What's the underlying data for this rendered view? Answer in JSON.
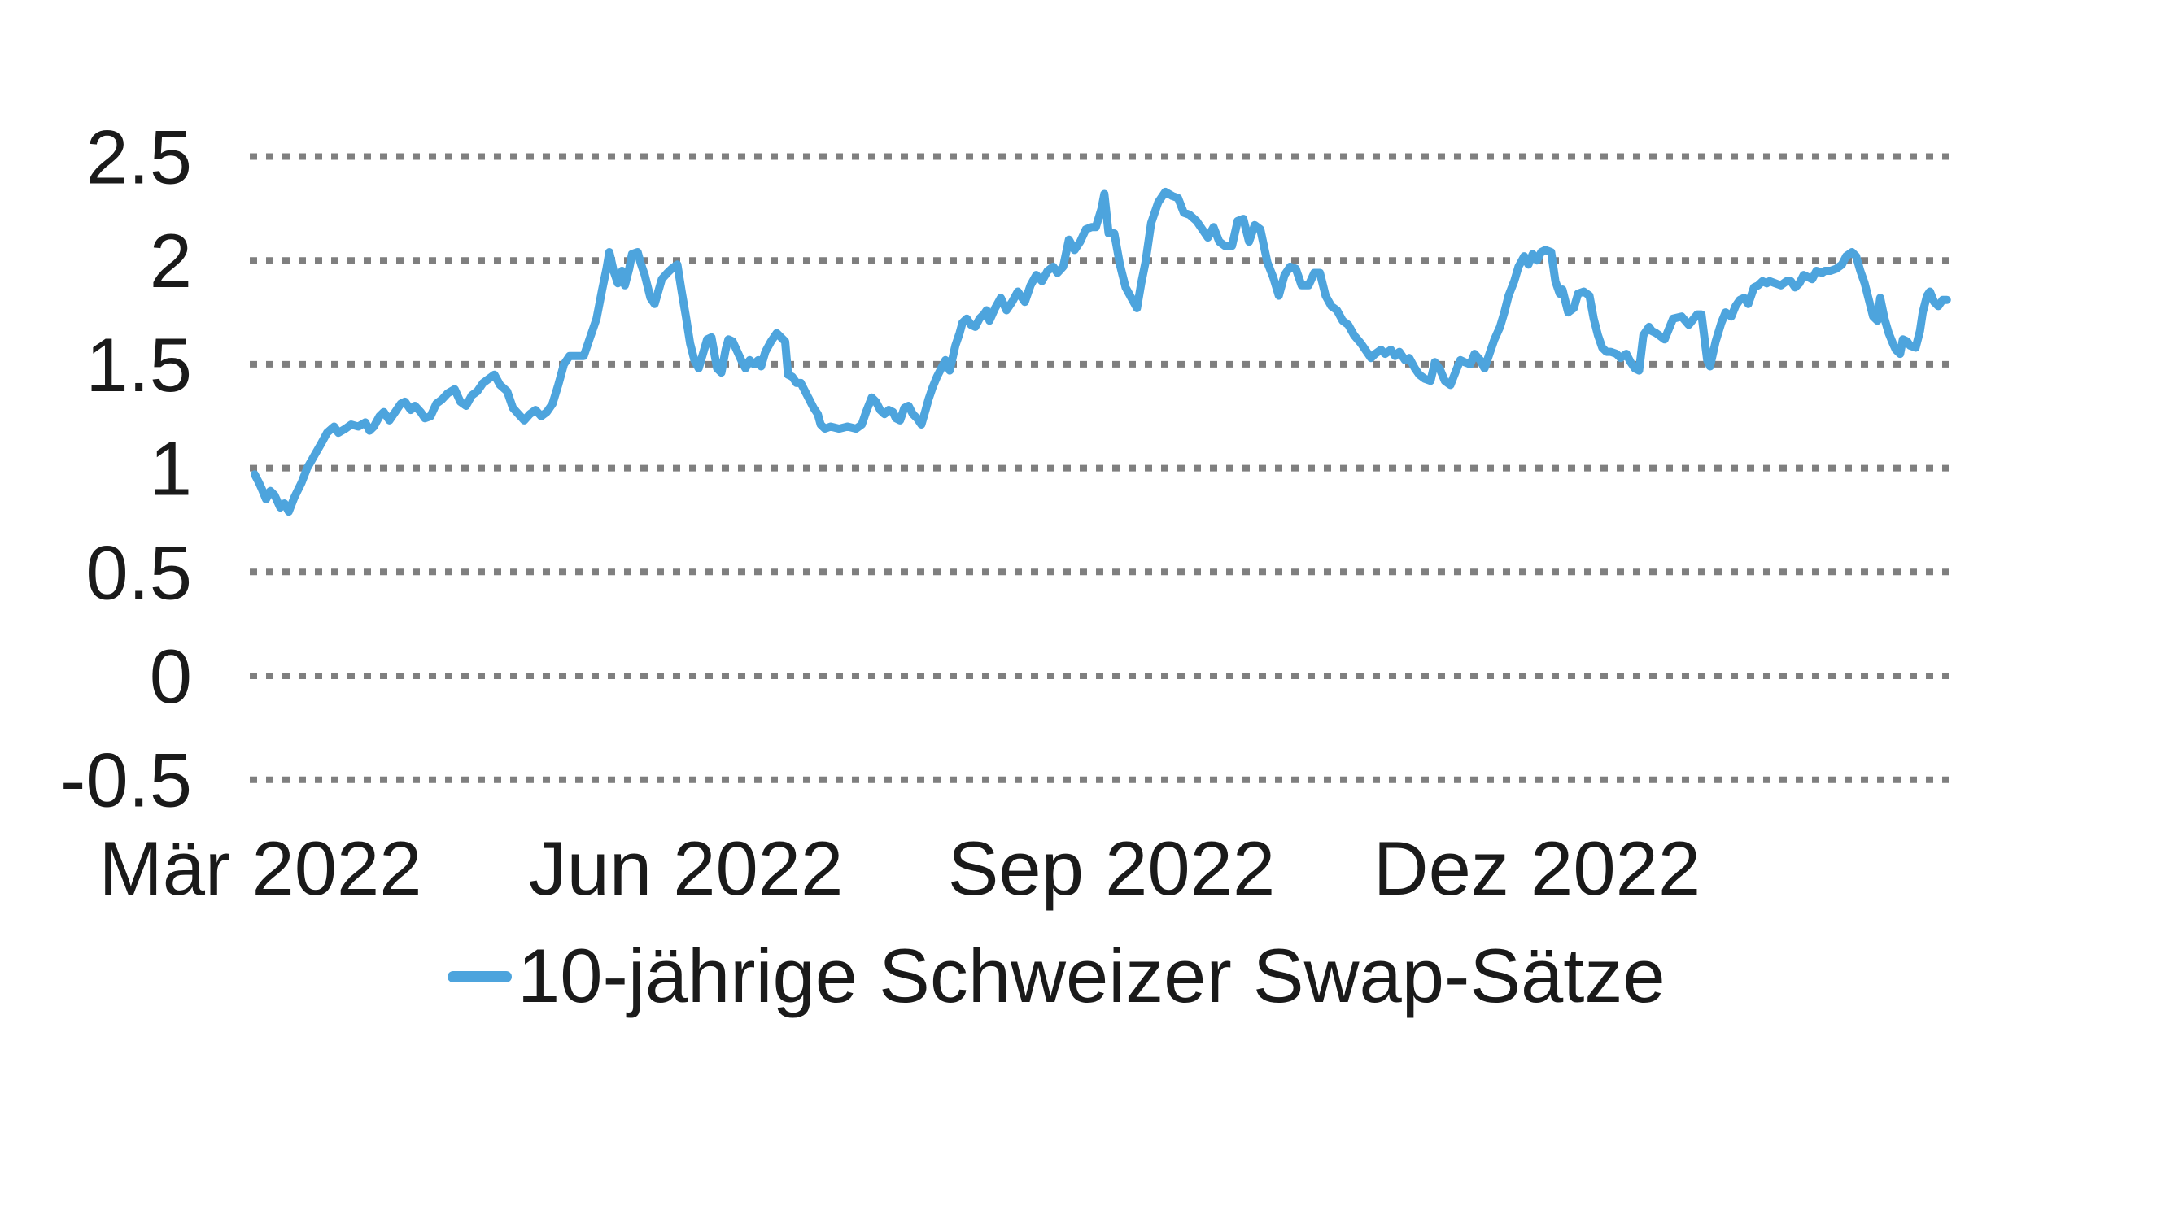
{
  "chart_data": {
    "type": "line",
    "title": "",
    "legend": "10-jährige Schweizer Swap-Sätze",
    "legend_position": "bottom",
    "grid": "horizontal-dotted",
    "background": "#FFFFFF",
    "colors": {
      "line": "#4DA4DD",
      "grid": "#7F7F7F",
      "text": "#1A1A1A"
    },
    "ylabel": "",
    "xlabel": "",
    "ylim": [
      -0.5,
      2.5
    ],
    "y_ticks": [
      {
        "value": 2.5,
        "label": "2.5"
      },
      {
        "value": 2.0,
        "label": "2"
      },
      {
        "value": 1.5,
        "label": "1.5"
      },
      {
        "value": 1.0,
        "label": "1"
      },
      {
        "value": 0.5,
        "label": "0.5"
      },
      {
        "value": 0.0,
        "label": "0"
      },
      {
        "value": -0.5,
        "label": "-0.5"
      }
    ],
    "x_unit": "months since March 2022",
    "x_ticks": [
      {
        "m": 0,
        "label": "Mär 2022"
      },
      {
        "m": 3,
        "label": "Jun 2022"
      },
      {
        "m": 6,
        "label": "Sep 2022"
      },
      {
        "m": 9,
        "label": "Dez 2022"
      }
    ],
    "points": [
      [
        -0.04,
        0.97
      ],
      [
        -0.01,
        0.93
      ],
      [
        0.01,
        0.9
      ],
      [
        0.04,
        0.85
      ],
      [
        0.07,
        0.89
      ],
      [
        0.1,
        0.87
      ],
      [
        0.14,
        0.81
      ],
      [
        0.17,
        0.83
      ],
      [
        0.2,
        0.79
      ],
      [
        0.24,
        0.86
      ],
      [
        0.29,
        0.93
      ],
      [
        0.33,
        1.0
      ],
      [
        0.38,
        1.06
      ],
      [
        0.43,
        1.12
      ],
      [
        0.47,
        1.17
      ],
      [
        0.52,
        1.2
      ],
      [
        0.55,
        1.17
      ],
      [
        0.6,
        1.19
      ],
      [
        0.64,
        1.21
      ],
      [
        0.69,
        1.2
      ],
      [
        0.74,
        1.22
      ],
      [
        0.77,
        1.18
      ],
      [
        0.8,
        1.2
      ],
      [
        0.84,
        1.25
      ],
      [
        0.87,
        1.27
      ],
      [
        0.91,
        1.23
      ],
      [
        0.94,
        1.26
      ],
      [
        0.99,
        1.31
      ],
      [
        1.02,
        1.32
      ],
      [
        1.06,
        1.28
      ],
      [
        1.09,
        1.3
      ],
      [
        1.13,
        1.27
      ],
      [
        1.16,
        1.24
      ],
      [
        1.2,
        1.25
      ],
      [
        1.24,
        1.31
      ],
      [
        1.28,
        1.33
      ],
      [
        1.32,
        1.36
      ],
      [
        1.37,
        1.38
      ],
      [
        1.41,
        1.32
      ],
      [
        1.45,
        1.3
      ],
      [
        1.49,
        1.35
      ],
      [
        1.53,
        1.37
      ],
      [
        1.57,
        1.41
      ],
      [
        1.61,
        1.43
      ],
      [
        1.65,
        1.45
      ],
      [
        1.69,
        1.4
      ],
      [
        1.74,
        1.37
      ],
      [
        1.78,
        1.29
      ],
      [
        1.82,
        1.26
      ],
      [
        1.86,
        1.23
      ],
      [
        1.9,
        1.26
      ],
      [
        1.94,
        1.28
      ],
      [
        1.98,
        1.25
      ],
      [
        2.02,
        1.27
      ],
      [
        2.06,
        1.31
      ],
      [
        2.1,
        1.4
      ],
      [
        2.14,
        1.5
      ],
      [
        2.18,
        1.54
      ],
      [
        2.23,
        1.54
      ],
      [
        2.28,
        1.54
      ],
      [
        2.32,
        1.62
      ],
      [
        2.37,
        1.72
      ],
      [
        2.41,
        1.86
      ],
      [
        2.44,
        1.96
      ],
      [
        2.46,
        2.04
      ],
      [
        2.49,
        1.95
      ],
      [
        2.52,
        1.89
      ],
      [
        2.55,
        1.95
      ],
      [
        2.57,
        1.88
      ],
      [
        2.6,
        1.96
      ],
      [
        2.62,
        2.03
      ],
      [
        2.66,
        2.04
      ],
      [
        2.68,
        1.99
      ],
      [
        2.71,
        1.93
      ],
      [
        2.75,
        1.82
      ],
      [
        2.78,
        1.79
      ],
      [
        2.83,
        1.91
      ],
      [
        2.87,
        1.94
      ],
      [
        2.9,
        1.96
      ],
      [
        2.94,
        1.98
      ],
      [
        2.97,
        1.85
      ],
      [
        3.0,
        1.73
      ],
      [
        3.03,
        1.6
      ],
      [
        3.06,
        1.52
      ],
      [
        3.09,
        1.48
      ],
      [
        3.12,
        1.55
      ],
      [
        3.15,
        1.62
      ],
      [
        3.18,
        1.63
      ],
      [
        3.22,
        1.48
      ],
      [
        3.25,
        1.46
      ],
      [
        3.28,
        1.57
      ],
      [
        3.3,
        1.62
      ],
      [
        3.33,
        1.61
      ],
      [
        3.39,
        1.52
      ],
      [
        3.42,
        1.48
      ],
      [
        3.45,
        1.52
      ],
      [
        3.48,
        1.5
      ],
      [
        3.51,
        1.52
      ],
      [
        3.53,
        1.49
      ],
      [
        3.56,
        1.56
      ],
      [
        3.6,
        1.61
      ],
      [
        3.64,
        1.65
      ],
      [
        3.67,
        1.63
      ],
      [
        3.7,
        1.61
      ],
      [
        3.72,
        1.45
      ],
      [
        3.75,
        1.44
      ],
      [
        3.78,
        1.41
      ],
      [
        3.81,
        1.41
      ],
      [
        3.87,
        1.33
      ],
      [
        3.9,
        1.29
      ],
      [
        3.93,
        1.26
      ],
      [
        3.95,
        1.21
      ],
      [
        3.98,
        1.19
      ],
      [
        4.02,
        1.2
      ],
      [
        4.08,
        1.19
      ],
      [
        4.14,
        1.2
      ],
      [
        4.2,
        1.19
      ],
      [
        4.24,
        1.21
      ],
      [
        4.27,
        1.27
      ],
      [
        4.31,
        1.34
      ],
      [
        4.34,
        1.32
      ],
      [
        4.37,
        1.28
      ],
      [
        4.4,
        1.26
      ],
      [
        4.43,
        1.28
      ],
      [
        4.46,
        1.27
      ],
      [
        4.48,
        1.24
      ],
      [
        4.51,
        1.23
      ],
      [
        4.54,
        1.29
      ],
      [
        4.57,
        1.3
      ],
      [
        4.6,
        1.26
      ],
      [
        4.63,
        1.24
      ],
      [
        4.66,
        1.21
      ],
      [
        4.69,
        1.28
      ],
      [
        4.71,
        1.33
      ],
      [
        4.74,
        1.39
      ],
      [
        4.77,
        1.44
      ],
      [
        4.8,
        1.48
      ],
      [
        4.83,
        1.52
      ],
      [
        4.86,
        1.47
      ],
      [
        4.9,
        1.59
      ],
      [
        4.93,
        1.65
      ],
      [
        4.95,
        1.7
      ],
      [
        4.98,
        1.72
      ],
      [
        5.01,
        1.69
      ],
      [
        5.04,
        1.68
      ],
      [
        5.07,
        1.72
      ],
      [
        5.1,
        1.74
      ],
      [
        5.12,
        1.76
      ],
      [
        5.14,
        1.71
      ],
      [
        5.18,
        1.77
      ],
      [
        5.22,
        1.82
      ],
      [
        5.26,
        1.76
      ],
      [
        5.3,
        1.8
      ],
      [
        5.34,
        1.85
      ],
      [
        5.39,
        1.8
      ],
      [
        5.43,
        1.88
      ],
      [
        5.47,
        1.93
      ],
      [
        5.51,
        1.9
      ],
      [
        5.55,
        1.95
      ],
      [
        5.59,
        1.97
      ],
      [
        5.62,
        1.94
      ],
      [
        5.66,
        1.97
      ],
      [
        5.7,
        2.1
      ],
      [
        5.74,
        2.05
      ],
      [
        5.78,
        2.09
      ],
      [
        5.82,
        2.15
      ],
      [
        5.86,
        2.16
      ],
      [
        5.89,
        2.16
      ],
      [
        5.93,
        2.25
      ],
      [
        5.95,
        2.32
      ],
      [
        5.98,
        2.13
      ],
      [
        6.02,
        2.13
      ],
      [
        6.06,
        1.98
      ],
      [
        6.1,
        1.87
      ],
      [
        6.14,
        1.82
      ],
      [
        6.18,
        1.77
      ],
      [
        6.21,
        1.89
      ],
      [
        6.24,
        1.99
      ],
      [
        6.28,
        2.18
      ],
      [
        6.33,
        2.28
      ],
      [
        6.38,
        2.33
      ],
      [
        6.43,
        2.31
      ],
      [
        6.47,
        2.3
      ],
      [
        6.51,
        2.23
      ],
      [
        6.55,
        2.22
      ],
      [
        6.6,
        2.19
      ],
      [
        6.64,
        2.15
      ],
      [
        6.68,
        2.11
      ],
      [
        6.72,
        2.16
      ],
      [
        6.76,
        2.09
      ],
      [
        6.8,
        2.07
      ],
      [
        6.85,
        2.07
      ],
      [
        6.89,
        2.19
      ],
      [
        6.93,
        2.2
      ],
      [
        6.97,
        2.09
      ],
      [
        7.01,
        2.17
      ],
      [
        7.05,
        2.15
      ],
      [
        7.1,
        1.99
      ],
      [
        7.14,
        1.92
      ],
      [
        7.18,
        1.83
      ],
      [
        7.22,
        1.93
      ],
      [
        7.26,
        1.97
      ],
      [
        7.3,
        1.96
      ],
      [
        7.34,
        1.88
      ],
      [
        7.39,
        1.88
      ],
      [
        7.43,
        1.94
      ],
      [
        7.47,
        1.94
      ],
      [
        7.51,
        1.83
      ],
      [
        7.55,
        1.78
      ],
      [
        7.59,
        1.76
      ],
      [
        7.63,
        1.71
      ],
      [
        7.67,
        1.69
      ],
      [
        7.71,
        1.64
      ],
      [
        7.76,
        1.6
      ],
      [
        7.79,
        1.57
      ],
      [
        7.83,
        1.53
      ],
      [
        7.86,
        1.55
      ],
      [
        7.9,
        1.57
      ],
      [
        7.93,
        1.55
      ],
      [
        7.97,
        1.57
      ],
      [
        8.0,
        1.54
      ],
      [
        8.03,
        1.56
      ],
      [
        8.07,
        1.52
      ],
      [
        8.1,
        1.53
      ],
      [
        8.14,
        1.48
      ],
      [
        8.17,
        1.45
      ],
      [
        8.21,
        1.43
      ],
      [
        8.25,
        1.42
      ],
      [
        8.28,
        1.51
      ],
      [
        8.32,
        1.47
      ],
      [
        8.35,
        1.42
      ],
      [
        8.39,
        1.4
      ],
      [
        8.43,
        1.47
      ],
      [
        8.46,
        1.52
      ],
      [
        8.49,
        1.51
      ],
      [
        8.53,
        1.5
      ],
      [
        8.56,
        1.55
      ],
      [
        8.6,
        1.52
      ],
      [
        8.63,
        1.48
      ],
      [
        8.67,
        1.56
      ],
      [
        8.7,
        1.62
      ],
      [
        8.74,
        1.68
      ],
      [
        8.77,
        1.75
      ],
      [
        8.8,
        1.83
      ],
      [
        8.84,
        1.9
      ],
      [
        8.87,
        1.97
      ],
      [
        8.91,
        2.02
      ],
      [
        8.94,
        1.98
      ],
      [
        8.97,
        2.03
      ],
      [
        9.0,
        2.0
      ],
      [
        9.03,
        2.04
      ],
      [
        9.06,
        2.05
      ],
      [
        9.1,
        2.04
      ],
      [
        9.13,
        1.9
      ],
      [
        9.16,
        1.84
      ],
      [
        9.18,
        1.86
      ],
      [
        9.22,
        1.75
      ],
      [
        9.26,
        1.77
      ],
      [
        9.29,
        1.84
      ],
      [
        9.33,
        1.85
      ],
      [
        9.37,
        1.83
      ],
      [
        9.4,
        1.72
      ],
      [
        9.43,
        1.64
      ],
      [
        9.46,
        1.58
      ],
      [
        9.49,
        1.56
      ],
      [
        9.52,
        1.56
      ],
      [
        9.56,
        1.55
      ],
      [
        9.59,
        1.53
      ],
      [
        9.63,
        1.55
      ],
      [
        9.66,
        1.51
      ],
      [
        9.69,
        1.48
      ],
      [
        9.72,
        1.47
      ],
      [
        9.75,
        1.64
      ],
      [
        9.79,
        1.68
      ],
      [
        9.81,
        1.66
      ],
      [
        9.84,
        1.65
      ],
      [
        9.9,
        1.62
      ],
      [
        9.96,
        1.72
      ],
      [
        10.02,
        1.73
      ],
      [
        10.07,
        1.69
      ],
      [
        10.13,
        1.74
      ],
      [
        10.16,
        1.74
      ],
      [
        10.2,
        1.52
      ],
      [
        10.22,
        1.49
      ],
      [
        10.26,
        1.61
      ],
      [
        10.3,
        1.7
      ],
      [
        10.33,
        1.75
      ],
      [
        10.37,
        1.73
      ],
      [
        10.4,
        1.78
      ],
      [
        10.43,
        1.81
      ],
      [
        10.46,
        1.82
      ],
      [
        10.49,
        1.79
      ],
      [
        10.53,
        1.87
      ],
      [
        10.56,
        1.88
      ],
      [
        10.59,
        1.9
      ],
      [
        10.62,
        1.89
      ],
      [
        10.64,
        1.9
      ],
      [
        10.68,
        1.89
      ],
      [
        10.72,
        1.88
      ],
      [
        10.76,
        1.9
      ],
      [
        10.79,
        1.9
      ],
      [
        10.82,
        1.87
      ],
      [
        10.85,
        1.89
      ],
      [
        10.88,
        1.93
      ],
      [
        10.91,
        1.92
      ],
      [
        10.94,
        1.91
      ],
      [
        10.97,
        1.95
      ],
      [
        11.01,
        1.94
      ],
      [
        11.03,
        1.95
      ],
      [
        11.07,
        1.95
      ],
      [
        11.11,
        1.96
      ],
      [
        11.15,
        1.98
      ],
      [
        11.18,
        2.02
      ],
      [
        11.22,
        2.04
      ],
      [
        11.25,
        2.02
      ],
      [
        11.28,
        1.95
      ],
      [
        11.31,
        1.89
      ],
      [
        11.34,
        1.81
      ],
      [
        11.37,
        1.73
      ],
      [
        11.4,
        1.71
      ],
      [
        11.42,
        1.82
      ],
      [
        11.45,
        1.72
      ],
      [
        11.48,
        1.65
      ],
      [
        11.51,
        1.6
      ],
      [
        11.53,
        1.57
      ],
      [
        11.56,
        1.55
      ],
      [
        11.58,
        1.62
      ],
      [
        11.61,
        1.61
      ],
      [
        11.63,
        1.59
      ],
      [
        11.67,
        1.58
      ],
      [
        11.7,
        1.66
      ],
      [
        11.72,
        1.75
      ],
      [
        11.75,
        1.83
      ],
      [
        11.77,
        1.85
      ],
      [
        11.8,
        1.8
      ],
      [
        11.83,
        1.78
      ],
      [
        11.86,
        1.81
      ],
      [
        11.89,
        1.81
      ]
    ]
  }
}
